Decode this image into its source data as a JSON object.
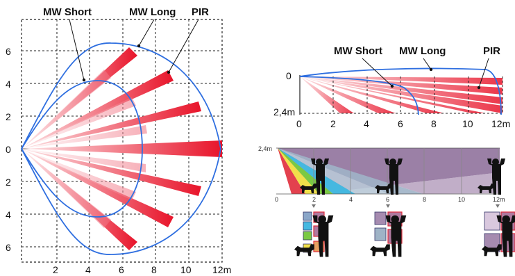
{
  "labels": {
    "mw_short": "MW Short",
    "mw_long": "MW Long",
    "pir": "PIR"
  },
  "top_view": {
    "y_ticks": [
      "6",
      "4",
      "2",
      "0",
      "2",
      "4",
      "6"
    ],
    "x_ticks": [
      "2",
      "4",
      "6",
      "8",
      "10",
      "12m"
    ]
  },
  "side_view": {
    "y_top": "0",
    "y_bottom": "2,4m",
    "x_ticks": [
      "0",
      "2",
      "4",
      "6",
      "8",
      "10",
      "12m"
    ]
  },
  "zone_view": {
    "height_label": "2,4m",
    "x_ticks": [
      "0",
      "2",
      "4",
      "6",
      "8",
      "10",
      "12m"
    ]
  },
  "colors": {
    "beam_red": "#e8142a",
    "beam_pink": "#f6b3b8",
    "coverage_blue": "#2f6fe0",
    "zone_purple": "#8a6a96",
    "zone_steel": "#9fb3c6",
    "zone_cyan": "#45b8e0",
    "zone_green": "#7ac943",
    "zone_yellow": "#f1e04a",
    "zone_red": "#e02c3b"
  },
  "icons": [
    "person-arms-raised-icon",
    "dog-icon"
  ]
}
